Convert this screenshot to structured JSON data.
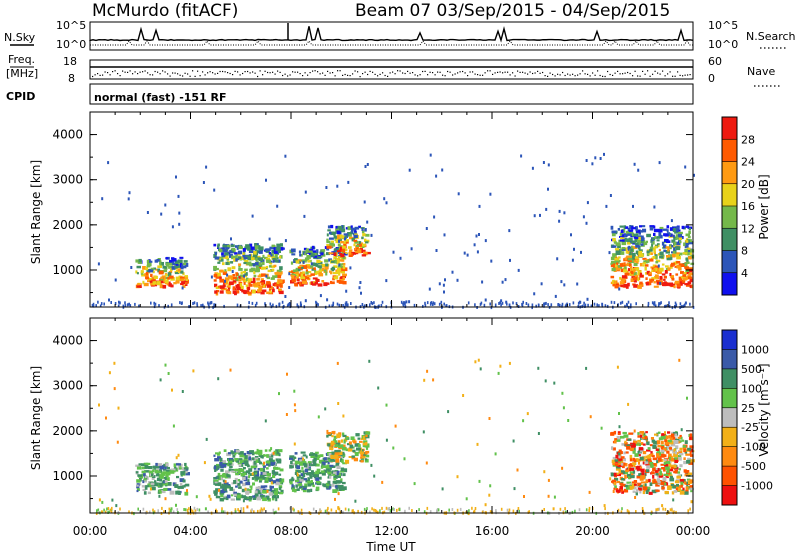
{
  "header": {
    "station": "McMurdo (fitACF)",
    "beam_info": "Beam 07  03/Sep/2015 - 04/Sep/2015"
  },
  "summary_panels": {
    "nsky_label": "N.Sky",
    "nsky_ticks": [
      "10^5",
      "10^0"
    ],
    "nsearch_label": "N.Search",
    "nsearch_ticks": [
      "10^5",
      "10^0"
    ],
    "freq_label_1": "Freq.",
    "freq_label_2": "[MHz]",
    "freq_ticks": [
      "18",
      "8"
    ],
    "nave_label": "Nave",
    "nave_ticks": [
      "60",
      "0"
    ],
    "cpid_label": "CPID",
    "cpid_value": "normal (fast) -151 RF"
  },
  "chart_data": [
    {
      "type": "heatmap",
      "name": "power",
      "ylabel": "Slant Range [km]",
      "xlabel": "",
      "ylim": [
        180,
        4500
      ],
      "xlim_hours": [
        0,
        24
      ],
      "yticks": [
        "1000",
        "2000",
        "3000",
        "4000"
      ],
      "colorbar_label": "Power [dB]",
      "colorbar_ticks": [
        "4",
        "8",
        "12",
        "16",
        "20",
        "24",
        "28"
      ],
      "colorbar_colors": [
        "#1010ee",
        "#2c55b8",
        "#3f8f64",
        "#74b84a",
        "#e8d21a",
        "#ff9a12",
        "#ff5a00",
        "#ee1a10"
      ],
      "scatter_regions": [
        {
          "start_h": 1.8,
          "end_h": 3.8,
          "range_low_km": 650,
          "range_high_km": 1300
        },
        {
          "start_h": 4.9,
          "end_h": 7.6,
          "range_low_km": 500,
          "range_high_km": 1600
        },
        {
          "start_h": 7.9,
          "end_h": 10.1,
          "range_low_km": 700,
          "range_high_km": 1550
        },
        {
          "start_h": 9.4,
          "end_h": 11.0,
          "range_low_km": 1350,
          "range_high_km": 2000
        },
        {
          "start_h": 20.7,
          "end_h": 23.9,
          "range_low_km": 650,
          "range_high_km": 2000
        }
      ]
    },
    {
      "type": "heatmap",
      "name": "velocity",
      "ylabel": "Slant Range [km]",
      "xlabel": "Time UT",
      "ylim": [
        180,
        4500
      ],
      "xlim_hours": [
        0,
        24
      ],
      "xticks": [
        "00:00",
        "04:00",
        "08:00",
        "12:00",
        "16:00",
        "20:00",
        "00:00"
      ],
      "yticks": [
        "1000",
        "2000",
        "3000",
        "4000"
      ],
      "colorbar_label": "Velocity [m s⁻¹]",
      "colorbar_ticks": [
        "1000",
        "500",
        "100",
        "25",
        "-25",
        "-100",
        "-500",
        "-1000"
      ],
      "colorbar_colors": [
        "#1a2fd0",
        "#3a5aa8",
        "#3f8f64",
        "#62c24a",
        "#bdbdbd",
        "#f2b018",
        "#ff8a10",
        "#ff5200",
        "#ee1010"
      ],
      "scatter_regions": [
        {
          "start_h": 1.8,
          "end_h": 3.8,
          "range_low_km": 650,
          "range_high_km": 1300
        },
        {
          "start_h": 4.9,
          "end_h": 7.6,
          "range_low_km": 500,
          "range_high_km": 1600
        },
        {
          "start_h": 7.9,
          "end_h": 10.1,
          "range_low_km": 700,
          "range_high_km": 1550
        },
        {
          "start_h": 9.4,
          "end_h": 11.0,
          "range_low_km": 1350,
          "range_high_km": 2000
        },
        {
          "start_h": 20.7,
          "end_h": 23.9,
          "range_low_km": 650,
          "range_high_km": 2000
        }
      ]
    }
  ]
}
